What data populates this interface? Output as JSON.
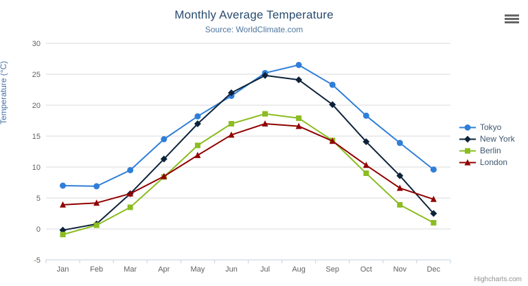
{
  "header": {
    "title": "Monthly Average Temperature",
    "subtitle": "Source: WorldClimate.com"
  },
  "credits": {
    "label": "Highcharts.com"
  },
  "context_menu": {
    "icon": "hamburger-icon"
  },
  "chart_data": {
    "type": "line",
    "title": "Monthly Average Temperature",
    "subtitle": "Source: WorldClimate.com",
    "xlabel": "",
    "ylabel": "Temperature (°C)",
    "ylim": [
      -5,
      30
    ],
    "tick_interval": 5,
    "grid": true,
    "legend_position": "right",
    "categories": [
      "Jan",
      "Feb",
      "Mar",
      "Apr",
      "May",
      "Jun",
      "Jul",
      "Aug",
      "Sep",
      "Oct",
      "Nov",
      "Dec"
    ],
    "series": [
      {
        "name": "Tokyo",
        "color": "#2f7ed8",
        "marker": "circle",
        "values": [
          7.0,
          6.9,
          9.5,
          14.5,
          18.2,
          21.5,
          25.2,
          26.5,
          23.3,
          18.3,
          13.9,
          9.6
        ]
      },
      {
        "name": "New York",
        "color": "#0d233a",
        "marker": "diamond",
        "values": [
          -0.2,
          0.8,
          5.7,
          11.3,
          17.0,
          22.0,
          24.8,
          24.1,
          20.1,
          14.1,
          8.6,
          2.5
        ]
      },
      {
        "name": "Berlin",
        "color": "#8bbc21",
        "marker": "square",
        "values": [
          -0.9,
          0.6,
          3.5,
          8.4,
          13.5,
          17.0,
          18.6,
          17.9,
          14.3,
          9.0,
          3.9,
          1.0
        ]
      },
      {
        "name": "London",
        "color": "#910000",
        "marker": "triangle",
        "values": [
          3.9,
          4.2,
          5.7,
          8.5,
          11.9,
          15.2,
          17.0,
          16.6,
          14.2,
          10.3,
          6.6,
          4.8
        ]
      }
    ],
    "axis_colors": {
      "gridline": "#d8d8d8",
      "axis_line": "#c0d0e0",
      "label": "#606060"
    }
  }
}
